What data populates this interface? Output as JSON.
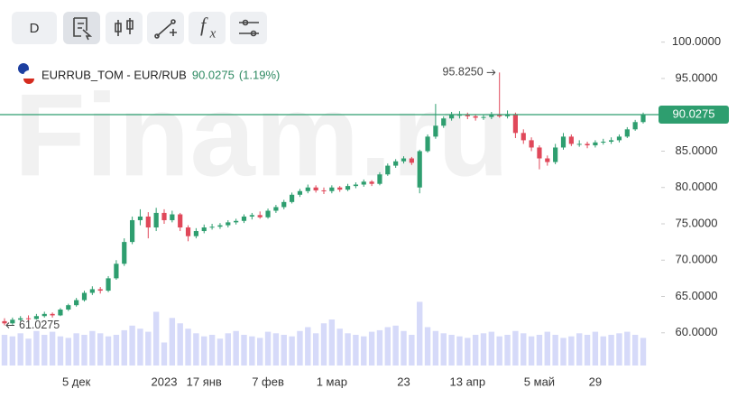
{
  "chart_data": {
    "type": "candlestick",
    "toolbar": {
      "interval": "D",
      "function": "f",
      "function_sub": "x"
    },
    "watermark": "Finam.ru",
    "instrument": "EURRUB_TOM - EUR/RUB",
    "last_price": 90.0275,
    "change": "(1.19%)",
    "high_marker": {
      "value": 95.825,
      "label": "95.8250"
    },
    "low_marker": {
      "value": 61.0275,
      "label": "61.0275"
    },
    "up_color": "#2e9e6f",
    "down_color": "#e0485a",
    "volume_color": "#d6daf9",
    "ylim": [
      55.5,
      105.8
    ],
    "yticks": [
      {
        "value": 60,
        "label": "60.0000"
      },
      {
        "value": 65,
        "label": "65.0000"
      },
      {
        "value": 70,
        "label": "70.0000"
      },
      {
        "value": 75,
        "label": "75.0000"
      },
      {
        "value": 80,
        "label": "80.0000"
      },
      {
        "value": 85,
        "label": "85.0000"
      },
      {
        "value": 90,
        "label": "90.0000"
      },
      {
        "value": 95,
        "label": "95.0000"
      },
      {
        "value": 100,
        "label": "100.0000"
      }
    ],
    "volume_lim": [
      0,
      100
    ],
    "categories": [
      null,
      null,
      null,
      null,
      null,
      null,
      null,
      null,
      null,
      "5 дек",
      null,
      null,
      null,
      null,
      null,
      null,
      null,
      null,
      null,
      null,
      "2023",
      null,
      null,
      null,
      null,
      "17 янв",
      null,
      null,
      null,
      null,
      null,
      null,
      null,
      "7 фев",
      null,
      null,
      null,
      null,
      null,
      null,
      null,
      "1 мар",
      null,
      null,
      null,
      null,
      null,
      null,
      null,
      null,
      "23",
      null,
      null,
      null,
      null,
      null,
      null,
      null,
      "13 апр",
      null,
      null,
      null,
      null,
      null,
      null,
      null,
      null,
      "5 май",
      null,
      null,
      null,
      null,
      null,
      null,
      "29",
      null,
      null,
      null,
      null,
      null,
      null
    ],
    "candles": [
      [
        61.6,
        62.0,
        61.0275,
        61.3
      ],
      [
        61.3,
        62.1,
        61.1,
        61.8
      ],
      [
        61.8,
        62.3,
        61.6,
        62.0
      ],
      [
        62.0,
        62.4,
        61.7,
        61.9
      ],
      [
        61.9,
        62.6,
        61.8,
        62.3
      ],
      [
        62.3,
        62.9,
        62.1,
        62.6
      ],
      [
        62.6,
        62.8,
        62.1,
        62.4
      ],
      [
        62.4,
        63.4,
        62.3,
        63.2
      ],
      [
        63.2,
        64.0,
        63.0,
        63.8
      ],
      [
        63.8,
        64.8,
        63.6,
        64.5
      ],
      [
        64.5,
        65.8,
        64.3,
        65.5
      ],
      [
        65.5,
        66.4,
        65.2,
        66.0
      ],
      [
        66.0,
        66.3,
        65.4,
        65.8
      ],
      [
        65.8,
        67.8,
        65.6,
        67.5
      ],
      [
        67.5,
        70.0,
        67.3,
        69.5
      ],
      [
        69.5,
        73.0,
        69.2,
        72.5
      ],
      [
        72.5,
        76.0,
        72.2,
        75.5
      ],
      [
        75.5,
        77.0,
        74.8,
        76.0
      ],
      [
        76.0,
        76.6,
        73.0,
        74.5
      ],
      [
        74.5,
        77.2,
        74.0,
        76.5
      ],
      [
        76.5,
        77.0,
        75.0,
        75.5
      ],
      [
        75.5,
        76.8,
        75.2,
        76.3
      ],
      [
        76.3,
        76.5,
        74.0,
        74.5
      ],
      [
        74.5,
        74.8,
        72.6,
        73.3
      ],
      [
        73.3,
        74.4,
        73.0,
        74.0
      ],
      [
        74.0,
        74.9,
        73.7,
        74.5
      ],
      [
        74.5,
        75.0,
        74.2,
        74.6
      ],
      [
        74.6,
        75.1,
        74.3,
        74.8
      ],
      [
        74.8,
        75.5,
        74.5,
        75.2
      ],
      [
        75.2,
        75.7,
        74.9,
        75.4
      ],
      [
        75.4,
        76.3,
        75.1,
        76.0
      ],
      [
        76.0,
        76.5,
        75.6,
        76.2
      ],
      [
        76.2,
        76.7,
        75.7,
        75.9
      ],
      [
        75.9,
        77.1,
        75.7,
        76.8
      ],
      [
        76.8,
        77.6,
        76.5,
        77.3
      ],
      [
        77.3,
        78.3,
        77.0,
        78.0
      ],
      [
        78.0,
        79.3,
        77.8,
        79.0
      ],
      [
        79.0,
        79.8,
        78.7,
        79.5
      ],
      [
        79.5,
        80.4,
        79.2,
        80.0
      ],
      [
        80.0,
        80.3,
        79.3,
        79.6
      ],
      [
        79.6,
        80.0,
        79.1,
        79.5
      ],
      [
        79.5,
        80.3,
        79.2,
        80.0
      ],
      [
        80.0,
        80.2,
        79.4,
        79.7
      ],
      [
        79.7,
        80.5,
        79.5,
        80.2
      ],
      [
        80.2,
        80.7,
        79.9,
        80.4
      ],
      [
        80.4,
        81.1,
        80.1,
        80.8
      ],
      [
        80.8,
        81.0,
        80.2,
        80.5
      ],
      [
        80.5,
        82.1,
        80.3,
        81.8
      ],
      [
        81.8,
        83.3,
        81.6,
        83.0
      ],
      [
        83.0,
        83.9,
        82.7,
        83.6
      ],
      [
        83.6,
        84.3,
        83.3,
        84.0
      ],
      [
        84.0,
        84.2,
        83.1,
        83.4
      ],
      [
        80.0,
        85.2,
        79.2,
        85.0
      ],
      [
        85.0,
        87.3,
        84.8,
        87.0
      ],
      [
        87.0,
        91.5,
        86.7,
        88.5
      ],
      [
        88.5,
        89.8,
        88.2,
        89.5
      ],
      [
        89.5,
        90.4,
        89.2,
        90.0
      ],
      [
        90.0,
        90.5,
        89.5,
        90.0
      ],
      [
        90.0,
        90.3,
        89.4,
        89.8
      ],
      [
        89.8,
        90.1,
        89.2,
        89.6
      ],
      [
        89.6,
        90.0,
        89.3,
        89.7
      ],
      [
        89.7,
        90.4,
        89.4,
        90.0
      ],
      [
        90.0,
        95.825,
        89.6,
        89.8
      ],
      [
        89.8,
        90.6,
        89.5,
        90.1
      ],
      [
        90.1,
        90.3,
        86.8,
        87.5
      ],
      [
        87.5,
        88.0,
        86.0,
        86.5
      ],
      [
        86.5,
        86.9,
        85.0,
        85.5
      ],
      [
        85.5,
        85.8,
        82.5,
        84.0
      ],
      [
        84.0,
        84.4,
        83.0,
        83.5
      ],
      [
        83.5,
        86.0,
        83.2,
        85.5
      ],
      [
        85.5,
        87.5,
        85.2,
        87.0
      ],
      [
        87.0,
        87.3,
        85.7,
        86.0
      ],
      [
        86.0,
        86.5,
        85.6,
        86.0
      ],
      [
        86.0,
        86.3,
        85.4,
        85.8
      ],
      [
        85.8,
        86.5,
        85.5,
        86.2
      ],
      [
        86.2,
        86.7,
        85.9,
        86.3
      ],
      [
        86.3,
        86.9,
        86.0,
        86.5
      ],
      [
        86.5,
        87.3,
        86.2,
        87.0
      ],
      [
        87.0,
        88.3,
        86.8,
        88.0
      ],
      [
        88.0,
        89.3,
        87.8,
        89.0
      ],
      [
        89.0,
        90.3,
        88.8,
        90.0275
      ]
    ],
    "volume": [
      40,
      38,
      42,
      35,
      45,
      40,
      44,
      38,
      36,
      42,
      40,
      45,
      42,
      38,
      40,
      46,
      52,
      48,
      44,
      70,
      30,
      62,
      55,
      48,
      42,
      38,
      40,
      35,
      42,
      45,
      40,
      38,
      36,
      44,
      42,
      40,
      38,
      45,
      50,
      42,
      55,
      60,
      48,
      42,
      40,
      38,
      44,
      46,
      50,
      52,
      45,
      40,
      83,
      50,
      45,
      42,
      40,
      38,
      36,
      40,
      42,
      44,
      38,
      40,
      45,
      42,
      38,
      40,
      44,
      40,
      36,
      38,
      42,
      40,
      44,
      38,
      40,
      42,
      44,
      40,
      36
    ]
  }
}
